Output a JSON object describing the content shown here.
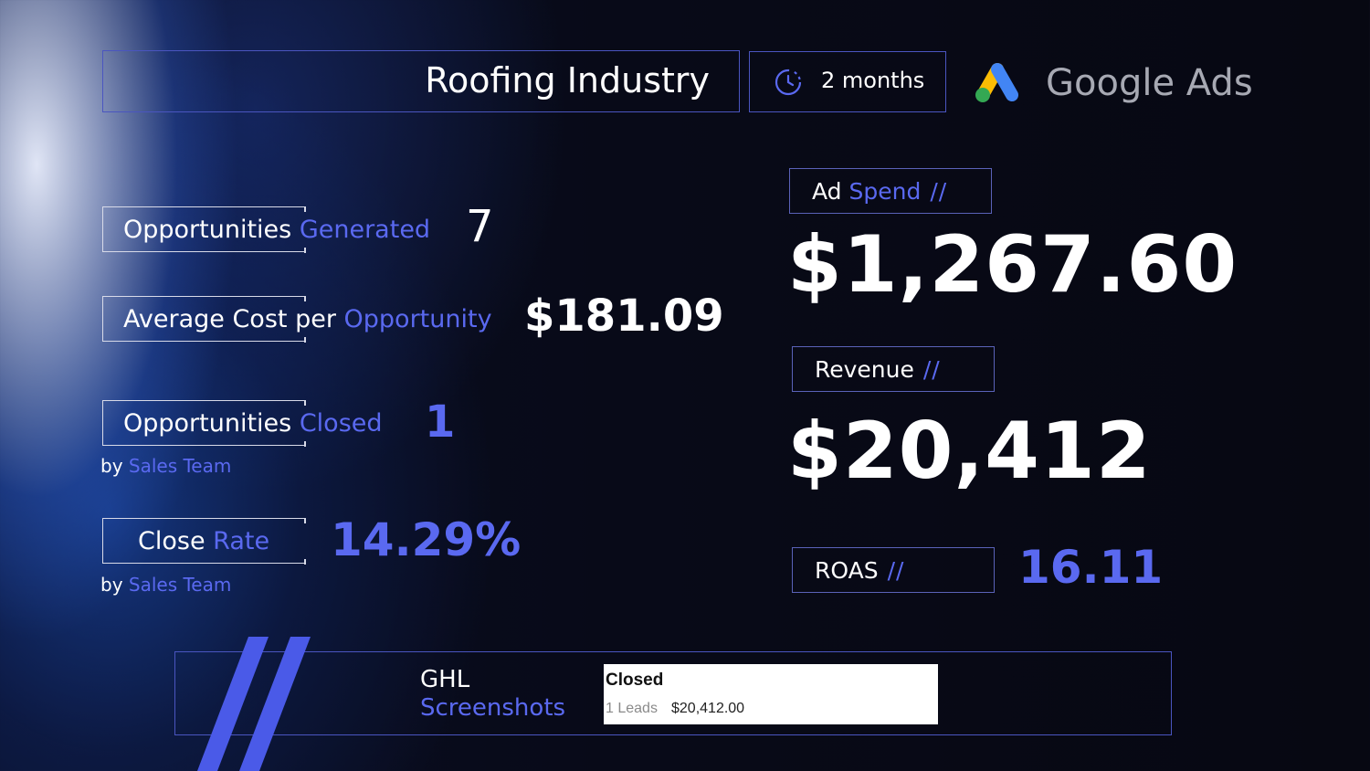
{
  "header": {
    "title": "Roofing Industry",
    "duration": "2 months",
    "brand": "Google Ads"
  },
  "metrics": {
    "opportunities_generated": {
      "label_white": "Opportunities",
      "label_blue": "Generated",
      "value": "7"
    },
    "avg_cost": {
      "label_white": "Average Cost",
      "label_mid": "per",
      "label_blue": "Opportunity",
      "value": "$181.09"
    },
    "opportunities_closed": {
      "label_white": "Opportunities",
      "label_blue": "Closed",
      "value": "1",
      "by": "by",
      "by_team": "Sales Team"
    },
    "close_rate": {
      "label_white": "Close",
      "label_blue": "Rate",
      "value": "14.29%",
      "by": "by",
      "by_team": "Sales Team"
    }
  },
  "right": {
    "ad_spend": {
      "label_white": "Ad",
      "label_blue": "Spend",
      "slashes": "//",
      "value": "$1,267.60"
    },
    "revenue": {
      "label": "Revenue",
      "slashes": "//",
      "value": "$20,412"
    },
    "roas": {
      "label": "ROAS",
      "slashes": "//",
      "value": "16.11"
    }
  },
  "footer": {
    "line1": "GHL",
    "line2": "Screenshots",
    "card": {
      "title": "Closed",
      "leads": "1 Leads",
      "amount": "$20,412.00"
    }
  },
  "colors": {
    "accent": "#5a69f0",
    "box_border": "#4a55c0",
    "background": "#080a18"
  },
  "icons": [
    "clock-icon",
    "google-ads-logo-icon"
  ]
}
